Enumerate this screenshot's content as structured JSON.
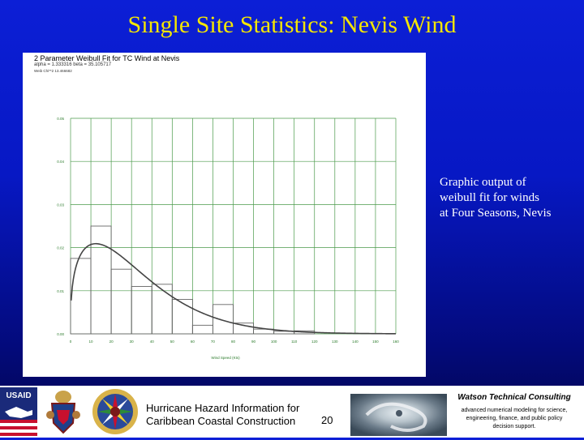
{
  "slide": {
    "title": "Single Site Statistics: Nevis Wind",
    "caption_lines": [
      "Graphic output of",
      "weibull fit for winds",
      "at Four Seasons, Nevis"
    ],
    "footer_line1": "Hurricane Hazard Information for",
    "footer_line2": "Caribbean Coastal Construction",
    "page_number": "20",
    "usaid_label": "USAID",
    "company_name": "Watson Technical Consulting",
    "company_desc_lines": [
      "advanced numerical modeling for science,",
      "engineering, finance, and public policy",
      "decision support."
    ]
  },
  "chart_data": {
    "type": "bar",
    "title": "2 Parameter Weibull Fit for TC Wind at Nevis",
    "subtitle": "alpha =  1.333316 beta =  35.105717",
    "annotation": "Weib Chi**2 13.466682",
    "xlabel": "Wind Speed (Kts)",
    "ylabel": "",
    "xlim": [
      0,
      160
    ],
    "ylim": [
      0,
      0.05
    ],
    "xticks": [
      "0",
      "10",
      "20",
      "30",
      "40",
      "50",
      "60",
      "70",
      "80",
      "90",
      "100",
      "110",
      "120",
      "130",
      "140",
      "150",
      "160"
    ],
    "yticks": [
      "0.00",
      "0.01",
      "0.02",
      "0.03",
      "0.04",
      "0.05"
    ],
    "bins": [
      [
        0,
        10
      ],
      [
        10,
        20
      ],
      [
        20,
        30
      ],
      [
        30,
        40
      ],
      [
        40,
        50
      ],
      [
        50,
        60
      ],
      [
        60,
        70
      ],
      [
        70,
        80
      ],
      [
        80,
        90
      ],
      [
        90,
        100
      ],
      [
        100,
        110
      ],
      [
        110,
        120
      ],
      [
        120,
        130
      ],
      [
        130,
        140
      ],
      [
        140,
        150
      ],
      [
        150,
        160
      ]
    ],
    "values": [
      0.0175,
      0.025,
      0.015,
      0.011,
      0.0115,
      0.008,
      0.002,
      0.0068,
      0.0025,
      0.0011,
      0.0006,
      0.0007,
      0.0,
      0.0,
      0.0,
      0.0
    ],
    "weibull": {
      "alpha": 1.333316,
      "beta": 35.105717
    },
    "grid": true,
    "colors": {
      "bars": "#666666",
      "grid": "#4a9a4a",
      "curve": "#444444",
      "tick_labels": "#2a7a2a"
    }
  }
}
